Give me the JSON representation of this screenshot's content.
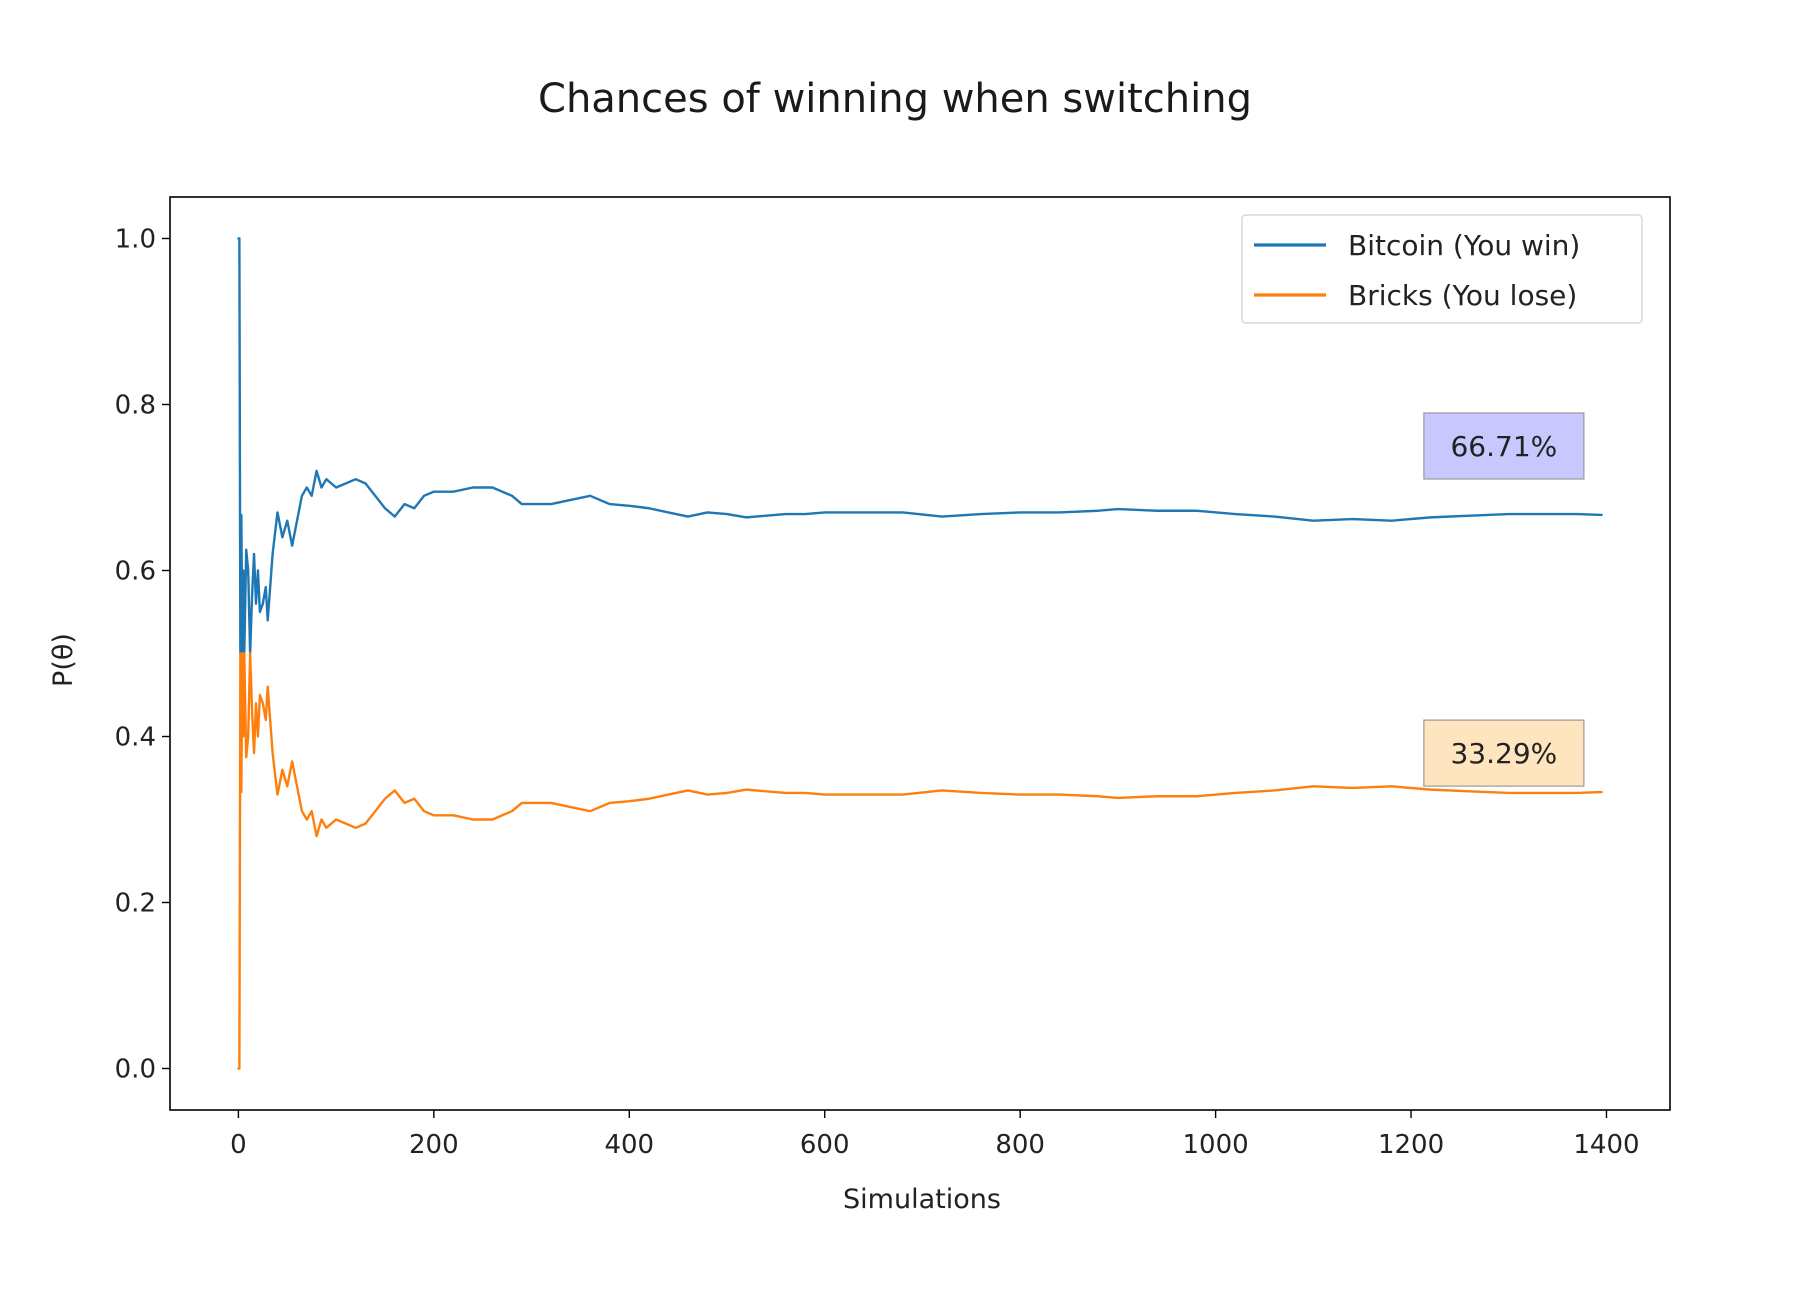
{
  "chart_data": {
    "type": "line",
    "title": "Chances of winning when switching",
    "xlabel": "Simulations",
    "ylabel": "P(θ)",
    "xlim": [
      -70,
      1465
    ],
    "ylim": [
      -0.05,
      1.05
    ],
    "xticks": [
      0,
      200,
      400,
      600,
      800,
      1000,
      1200,
      1400
    ],
    "xtick_labels": [
      "0",
      "200",
      "400",
      "600",
      "800",
      "1000",
      "1200",
      "1400"
    ],
    "yticks": [
      0.0,
      0.2,
      0.4,
      0.6,
      0.8,
      1.0
    ],
    "ytick_labels": [
      "0.0",
      "0.2",
      "0.4",
      "0.6",
      "0.8",
      "1.0"
    ],
    "grid": false,
    "legend_position": "top-right",
    "series": [
      {
        "name": "Bitcoin (You win)",
        "color": "#1f77b4",
        "points": [
          [
            0,
            1.0
          ],
          [
            1,
            1.0
          ],
          [
            2,
            0.5
          ],
          [
            3,
            0.667
          ],
          [
            4,
            0.5
          ],
          [
            5,
            0.6
          ],
          [
            6,
            0.5
          ],
          [
            8,
            0.625
          ],
          [
            10,
            0.6
          ],
          [
            12,
            0.5
          ],
          [
            14,
            0.57
          ],
          [
            16,
            0.62
          ],
          [
            18,
            0.56
          ],
          [
            20,
            0.6
          ],
          [
            22,
            0.55
          ],
          [
            25,
            0.56
          ],
          [
            28,
            0.58
          ],
          [
            30,
            0.54
          ],
          [
            35,
            0.62
          ],
          [
            40,
            0.67
          ],
          [
            45,
            0.64
          ],
          [
            50,
            0.66
          ],
          [
            55,
            0.63
          ],
          [
            60,
            0.66
          ],
          [
            65,
            0.69
          ],
          [
            70,
            0.7
          ],
          [
            75,
            0.69
          ],
          [
            80,
            0.72
          ],
          [
            85,
            0.7
          ],
          [
            90,
            0.71
          ],
          [
            100,
            0.7
          ],
          [
            110,
            0.705
          ],
          [
            120,
            0.71
          ],
          [
            130,
            0.705
          ],
          [
            140,
            0.69
          ],
          [
            150,
            0.675
          ],
          [
            160,
            0.665
          ],
          [
            170,
            0.68
          ],
          [
            180,
            0.675
          ],
          [
            190,
            0.69
          ],
          [
            200,
            0.695
          ],
          [
            220,
            0.695
          ],
          [
            240,
            0.7
          ],
          [
            260,
            0.7
          ],
          [
            280,
            0.69
          ],
          [
            290,
            0.68
          ],
          [
            300,
            0.68
          ],
          [
            320,
            0.68
          ],
          [
            340,
            0.685
          ],
          [
            360,
            0.69
          ],
          [
            380,
            0.68
          ],
          [
            400,
            0.678
          ],
          [
            420,
            0.675
          ],
          [
            440,
            0.67
          ],
          [
            460,
            0.665
          ],
          [
            480,
            0.67
          ],
          [
            500,
            0.668
          ],
          [
            520,
            0.664
          ],
          [
            540,
            0.666
          ],
          [
            560,
            0.668
          ],
          [
            580,
            0.668
          ],
          [
            600,
            0.67
          ],
          [
            640,
            0.67
          ],
          [
            680,
            0.67
          ],
          [
            720,
            0.665
          ],
          [
            760,
            0.668
          ],
          [
            800,
            0.67
          ],
          [
            840,
            0.67
          ],
          [
            880,
            0.672
          ],
          [
            900,
            0.674
          ],
          [
            940,
            0.672
          ],
          [
            980,
            0.672
          ],
          [
            1020,
            0.668
          ],
          [
            1060,
            0.665
          ],
          [
            1100,
            0.66
          ],
          [
            1140,
            0.662
          ],
          [
            1180,
            0.66
          ],
          [
            1220,
            0.664
          ],
          [
            1260,
            0.666
          ],
          [
            1300,
            0.668
          ],
          [
            1340,
            0.668
          ],
          [
            1370,
            0.668
          ],
          [
            1395,
            0.667
          ]
        ]
      },
      {
        "name": "Bricks (You lose)",
        "color": "#ff7f0e",
        "points": [
          [
            0,
            0.0
          ],
          [
            1,
            0.0
          ],
          [
            2,
            0.5
          ],
          [
            3,
            0.333
          ],
          [
            4,
            0.5
          ],
          [
            5,
            0.4
          ],
          [
            6,
            0.5
          ],
          [
            8,
            0.375
          ],
          [
            10,
            0.4
          ],
          [
            12,
            0.5
          ],
          [
            14,
            0.43
          ],
          [
            16,
            0.38
          ],
          [
            18,
            0.44
          ],
          [
            20,
            0.4
          ],
          [
            22,
            0.45
          ],
          [
            25,
            0.44
          ],
          [
            28,
            0.42
          ],
          [
            30,
            0.46
          ],
          [
            35,
            0.38
          ],
          [
            40,
            0.33
          ],
          [
            45,
            0.36
          ],
          [
            50,
            0.34
          ],
          [
            55,
            0.37
          ],
          [
            60,
            0.34
          ],
          [
            65,
            0.31
          ],
          [
            70,
            0.3
          ],
          [
            75,
            0.31
          ],
          [
            80,
            0.28
          ],
          [
            85,
            0.3
          ],
          [
            90,
            0.29
          ],
          [
            100,
            0.3
          ],
          [
            110,
            0.295
          ],
          [
            120,
            0.29
          ],
          [
            130,
            0.295
          ],
          [
            140,
            0.31
          ],
          [
            150,
            0.325
          ],
          [
            160,
            0.335
          ],
          [
            170,
            0.32
          ],
          [
            180,
            0.325
          ],
          [
            190,
            0.31
          ],
          [
            200,
            0.305
          ],
          [
            220,
            0.305
          ],
          [
            240,
            0.3
          ],
          [
            260,
            0.3
          ],
          [
            280,
            0.31
          ],
          [
            290,
            0.32
          ],
          [
            300,
            0.32
          ],
          [
            320,
            0.32
          ],
          [
            340,
            0.315
          ],
          [
            360,
            0.31
          ],
          [
            380,
            0.32
          ],
          [
            400,
            0.322
          ],
          [
            420,
            0.325
          ],
          [
            440,
            0.33
          ],
          [
            460,
            0.335
          ],
          [
            480,
            0.33
          ],
          [
            500,
            0.332
          ],
          [
            520,
            0.336
          ],
          [
            540,
            0.334
          ],
          [
            560,
            0.332
          ],
          [
            580,
            0.332
          ],
          [
            600,
            0.33
          ],
          [
            640,
            0.33
          ],
          [
            680,
            0.33
          ],
          [
            720,
            0.335
          ],
          [
            760,
            0.332
          ],
          [
            800,
            0.33
          ],
          [
            840,
            0.33
          ],
          [
            880,
            0.328
          ],
          [
            900,
            0.326
          ],
          [
            940,
            0.328
          ],
          [
            980,
            0.328
          ],
          [
            1020,
            0.332
          ],
          [
            1060,
            0.335
          ],
          [
            1100,
            0.34
          ],
          [
            1140,
            0.338
          ],
          [
            1180,
            0.34
          ],
          [
            1220,
            0.336
          ],
          [
            1260,
            0.334
          ],
          [
            1300,
            0.332
          ],
          [
            1340,
            0.332
          ],
          [
            1370,
            0.332
          ],
          [
            1395,
            0.333
          ]
        ]
      }
    ],
    "annotations": [
      {
        "text": "66.71%",
        "x": 1295,
        "y": 0.75,
        "background": "#c8c8ff"
      },
      {
        "text": "33.29%",
        "x": 1295,
        "y": 0.38,
        "background": "#ffe5bf"
      }
    ]
  }
}
